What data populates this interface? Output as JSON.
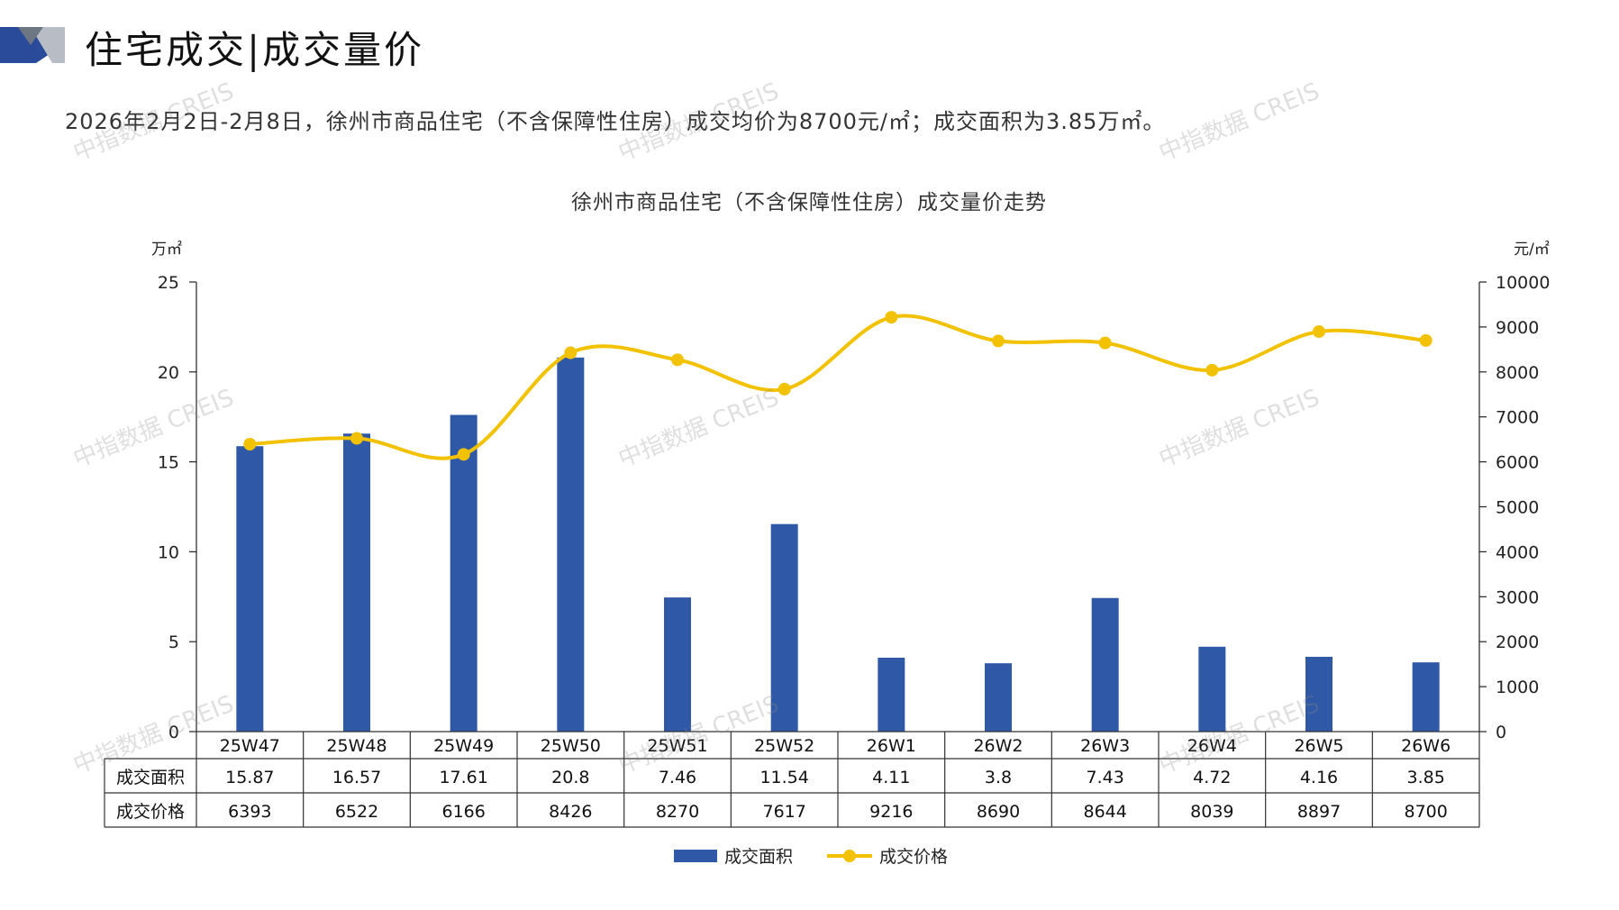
{
  "header": {
    "title": "住宅成交|成交量价",
    "summary": "2026年2月2日-2月8日，徐州市商品住宅（不含保障性住房）成交均价为8700元/㎡；成交面积为3.85万㎡。"
  },
  "watermark": "中指数据 CREIS",
  "colors": {
    "bar": "#2f58a6",
    "line": "#f2c200",
    "accent_dark": "#2a4a9a",
    "accent_gray": "#9aa0a8"
  },
  "chart_data": {
    "type": "bar",
    "title": "徐州市商品住宅（不含保障性住房）成交量价走势",
    "categories": [
      "25W47",
      "25W48",
      "25W49",
      "25W50",
      "25W51",
      "25W52",
      "26W1",
      "26W2",
      "26W3",
      "26W4",
      "26W5",
      "26W6"
    ],
    "left_axis": {
      "unit": "万㎡",
      "ylim": [
        0,
        25
      ],
      "ticks": [
        "0",
        "5",
        "10",
        "15",
        "20",
        "25"
      ]
    },
    "right_axis": {
      "unit": "元/㎡",
      "ylim": [
        0,
        10000
      ],
      "ticks": [
        "0",
        "1000",
        "2000",
        "3000",
        "4000",
        "5000",
        "6000",
        "7000",
        "8000",
        "9000",
        "10000"
      ]
    },
    "series": [
      {
        "name": "成交面积",
        "type": "bar",
        "axis": "left",
        "values": [
          15.87,
          16.57,
          17.61,
          20.8,
          7.46,
          11.54,
          4.11,
          3.8,
          7.43,
          4.72,
          4.16,
          3.85
        ],
        "labels": [
          "15.87",
          "16.57",
          "17.61",
          "20.8",
          "7.46",
          "11.54",
          "4.11",
          "3.8",
          "7.43",
          "4.72",
          "4.16",
          "3.85"
        ]
      },
      {
        "name": "成交价格",
        "type": "line",
        "axis": "right",
        "values": [
          6393,
          6522,
          6166,
          8426,
          8270,
          7617,
          9216,
          8690,
          8644,
          8039,
          8897,
          8700
        ],
        "labels": [
          "6393",
          "6522",
          "6166",
          "8426",
          "8270",
          "7617",
          "9216",
          "8690",
          "8644",
          "8039",
          "8897",
          "8700"
        ]
      }
    ],
    "legend": "bottom",
    "grid": false
  }
}
